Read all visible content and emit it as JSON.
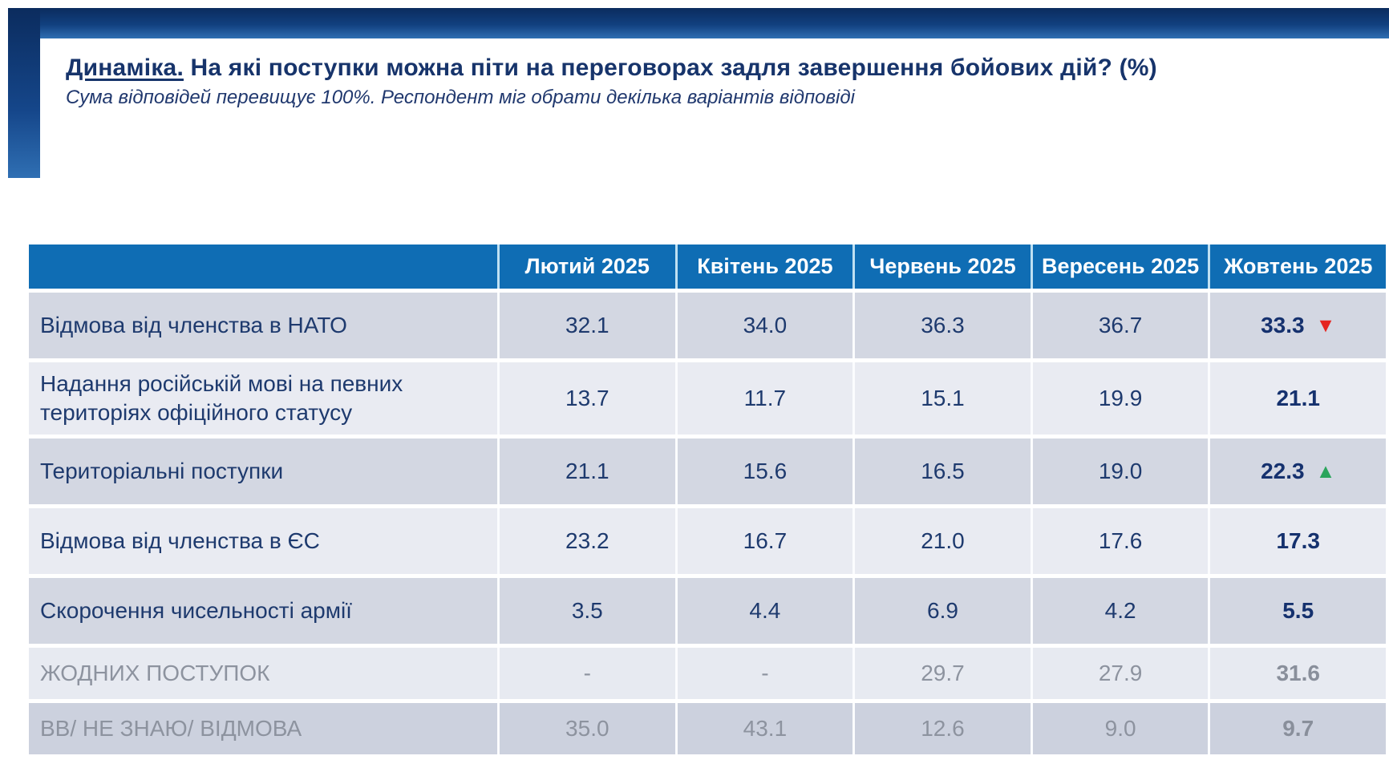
{
  "page": {
    "title_lead": "Динаміка.",
    "title_rest": " На які поступки можна піти на переговорах задля завершення бойових дій? (%)",
    "subtitle": "Сума відповідей перевищує 100%. Респондент міг обрати декілька варіантів відповіді"
  },
  "icons": {
    "up": "▲",
    "down": "▼"
  },
  "colors": {
    "header_blue": "#0f6db4",
    "row_dark": "#d3d7e2",
    "row_light": "#e9ebf2",
    "navy_text": "#1e3a6e",
    "muted_text": "#8d939f",
    "up_green": "#2ba45c",
    "down_red": "#e52520",
    "frame_gradient_top": "#0b2c5e",
    "frame_gradient_bottom": "#2f6fb3"
  },
  "chart_data": {
    "type": "table",
    "title": "Динаміка. На які поступки можна піти на переговорах задля завершення бойових дій? (%)",
    "subtitle": "Сума відповідей перевищує 100%. Респондент міг обрати декілька варіантів відповіді",
    "columns": [
      "Лютий 2025",
      "Квітень 2025",
      "Червень 2025",
      "Вересень 2025",
      "Жовтень 2025"
    ],
    "rows": [
      {
        "label": "Відмова від членства в НАТО",
        "values": [
          "32.1",
          "34.0",
          "36.3",
          "36.7",
          "33.3"
        ],
        "trend": "down",
        "muted": false
      },
      {
        "label": "Надання російській мові на певних територіях офіційного статусу",
        "values": [
          "13.7",
          "11.7",
          "15.1",
          "19.9",
          "21.1"
        ],
        "trend": "none",
        "muted": false
      },
      {
        "label": "Територіальні поступки",
        "values": [
          "21.1",
          "15.6",
          "16.5",
          "19.0",
          "22.3"
        ],
        "trend": "up",
        "muted": false
      },
      {
        "label": "Відмова від членства в ЄС",
        "values": [
          "23.2",
          "16.7",
          "21.0",
          "17.6",
          "17.3"
        ],
        "trend": "none",
        "muted": false
      },
      {
        "label": "Скорочення чисельності армії",
        "values": [
          "3.5",
          "4.4",
          "6.9",
          "4.2",
          "5.5"
        ],
        "trend": "none",
        "muted": false
      },
      {
        "label": "ЖОДНИХ ПОСТУПОК",
        "values": [
          "-",
          "-",
          "29.7",
          "27.9",
          "31.6"
        ],
        "trend": "none",
        "muted": true
      },
      {
        "label": "ВВ/ НЕ ЗНАЮ/ ВІДМОВА",
        "values": [
          "35.0",
          "43.1",
          "12.6",
          "9.0",
          "9.7"
        ],
        "trend": "none",
        "muted": true
      }
    ]
  }
}
